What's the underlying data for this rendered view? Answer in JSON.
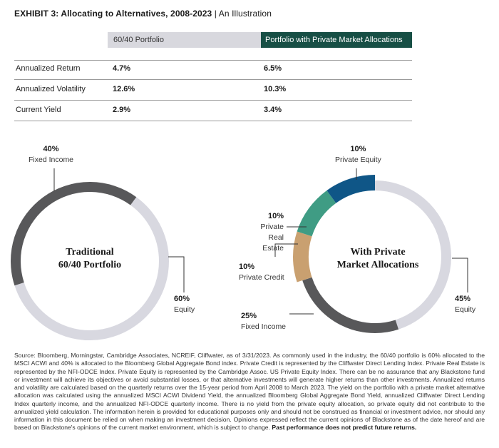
{
  "title": {
    "main": "EXHIBIT 3: Allocating to Alternatives, 2008-2023",
    "suffix": "| An Illustration"
  },
  "table": {
    "headers": [
      "60/40 Portfolio",
      "Portfolio with Private Market Allocations"
    ],
    "rows": [
      {
        "label": "Annualized Return",
        "values": [
          "4.7%",
          "6.5%"
        ]
      },
      {
        "label": "Annualized Volatility",
        "values": [
          "12.6%",
          "10.3%"
        ]
      },
      {
        "label": "Current Yield",
        "values": [
          "2.9%",
          "3.4%"
        ]
      }
    ]
  },
  "colors": {
    "equity": "#d8d8e0",
    "fixed_income": "#58585a",
    "private_credit": "#c9a070",
    "private_real_estate": "#3f9c84",
    "private_equity": "#0f5687",
    "header_accent": "#174f45"
  },
  "chart_data": [
    {
      "type": "pie",
      "title": "Traditional 60/40 Portfolio",
      "title_lines": [
        "Traditional",
        "60/40 Portfolio"
      ],
      "slices": [
        {
          "label": "Fixed Income",
          "value": 40,
          "value_label": "40%"
        },
        {
          "label": "Equity",
          "value": 60,
          "value_label": "60%"
        }
      ]
    },
    {
      "type": "pie",
      "title": "With Private Market Allocations",
      "title_lines": [
        "With Private",
        "Market Allocations"
      ],
      "slices": [
        {
          "label": "Equity",
          "value": 45,
          "value_label": "45%"
        },
        {
          "label": "Fixed Income",
          "value": 25,
          "value_label": "25%"
        },
        {
          "label": "Private Credit",
          "value": 10,
          "value_label": "10%"
        },
        {
          "label": "Private Real Estate",
          "value": 10,
          "value_label": "10%",
          "label_lines": [
            "Private",
            "Real Estate"
          ]
        },
        {
          "label": "Private Equity",
          "value": 10,
          "value_label": "10%"
        }
      ]
    }
  ],
  "source": {
    "text": "Source: Bloomberg, Morningstar, Cambridge Associates, NCREIF, Cliffwater, as of 3/31/2023. As commonly used in the industry, the 60/40 portfolio is 60% allocated to the MSCI ACWI and 40% is allocated to the Bloomberg Global Aggregate Bond index. Private Credit is represented by the Cliffwater Direct Lending Index. Private Real Estate is represented by the NFI-ODCE Index. Private Equity is represented by the Cambridge Assoc. US Private Equity Index. There can be no assurance that any Blackstone fund or investment will achieve its objectives or avoid substantial losses, or that alternative investments will generate higher returns than other investments. Annualized returns and volatility are calculated based on the quarterly returns over the 15-year period from April 2008 to March 2023. The yield on the portfolio with a private market alternative allocation was calculated using the annualized MSCI ACWI Dividend Yield, the annualized Bloomberg Global Aggregate Bond Yield, annualized Cliffwater Direct Lending Index quarterly income, and the annualized NFI-ODCE quarterly income. There is no yield from the private equity allocation, so private equity did not contribute to the annualized yield calculation. The information herein is provided for educational purposes only and should not be construed as financial or investment advice, nor should any information in this document be relied on when making an investment decision. Opinions expressed reflect the current opinions of Blackstone as of the date hereof and are based on Blackstone's opinions of the current market environment, which is subject to change.",
    "bold": "Past performance does not predict future returns."
  }
}
